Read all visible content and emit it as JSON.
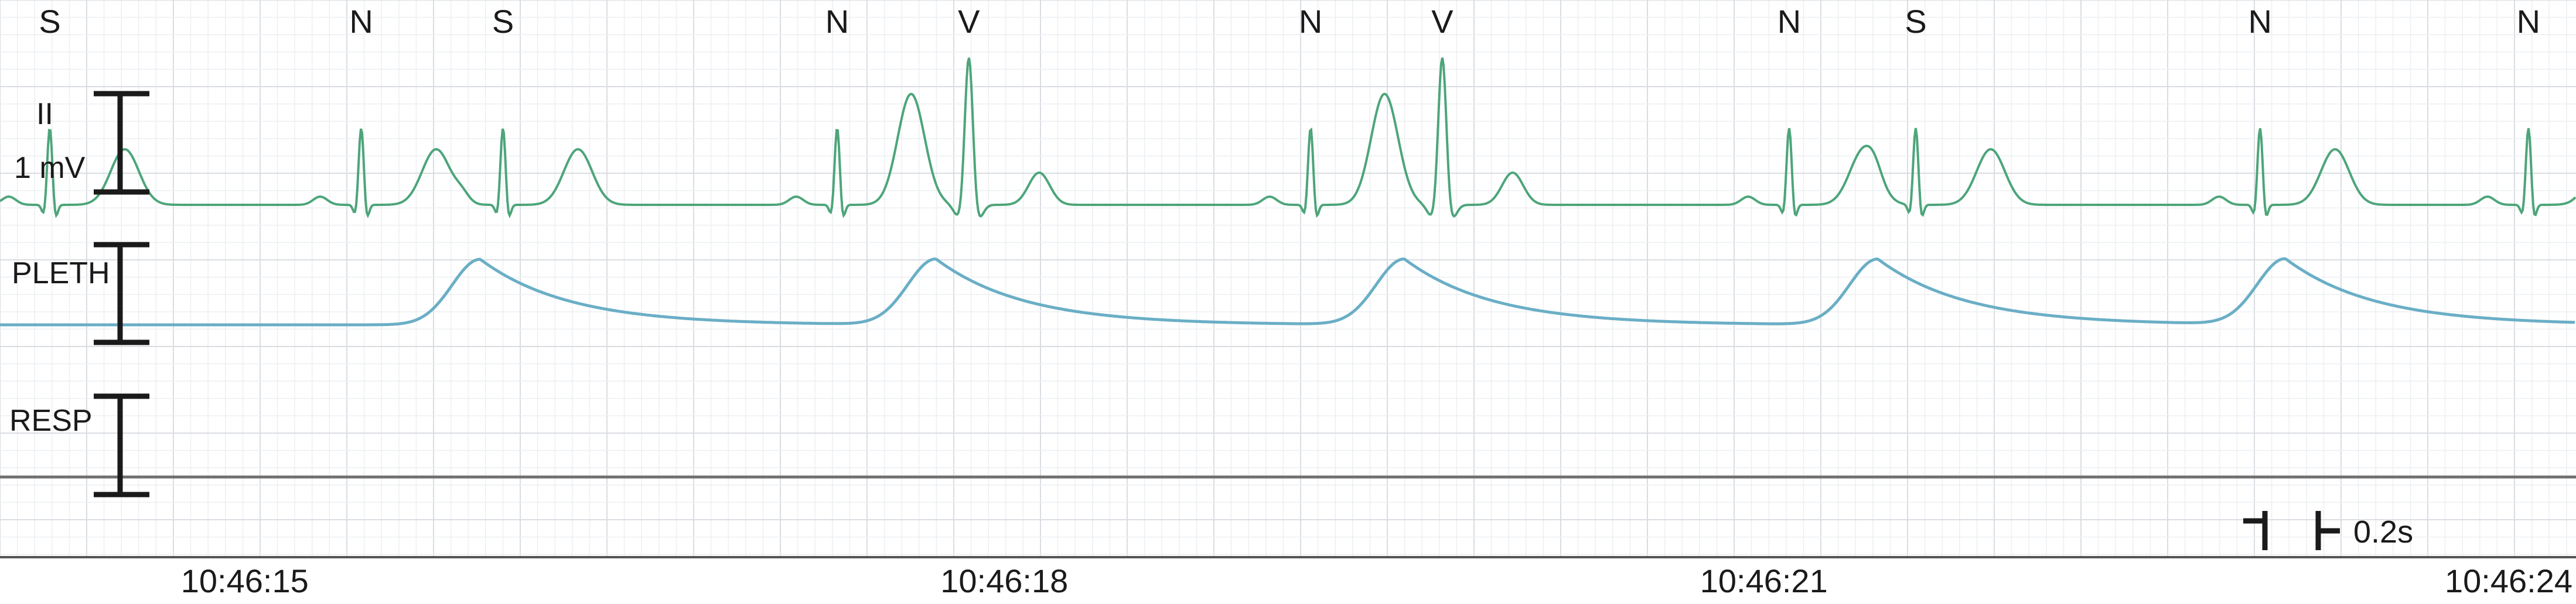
{
  "chart_data": {
    "type": "line",
    "title": "",
    "beat_annotations": [
      {
        "label": "S",
        "time_s": 0.0
      },
      {
        "label": "N",
        "time_s": 1.23
      },
      {
        "label": "S",
        "time_s": 1.79
      },
      {
        "label": "N",
        "time_s": 3.11
      },
      {
        "label": "V",
        "time_s": 3.63
      },
      {
        "label": "N",
        "time_s": 4.98
      },
      {
        "label": "V",
        "time_s": 5.5
      },
      {
        "label": "N",
        "time_s": 6.87
      },
      {
        "label": "S",
        "time_s": 7.37
      },
      {
        "label": "N",
        "time_s": 8.73
      },
      {
        "label": "N",
        "time_s": 9.79
      }
    ],
    "channels": [
      {
        "name": "II",
        "scale_label": "1 mV",
        "color": "#4da57a"
      },
      {
        "name": "PLETH",
        "scale_label": "",
        "color": "#6aaec6"
      },
      {
        "name": "RESP",
        "scale_label": "",
        "color": "#707070"
      }
    ],
    "pleth_peaks_s": [
      1.7,
      3.5,
      5.35,
      7.22,
      8.83
    ],
    "time_axis": {
      "tick_labels": [
        "10:46:15",
        "10:46:18",
        "10:46:21",
        "10:46:24"
      ],
      "tick_times_s": [
        0.77,
        3.77,
        6.77,
        9.77
      ],
      "range_s": [
        0.0,
        9.95
      ]
    },
    "time_scale_label": "0.2s",
    "grid": true
  },
  "colors": {
    "grid_minor": "#eceff2",
    "grid_major": "#d9dde2",
    "ecg": "#4da57a",
    "pleth": "#6aaec6",
    "resp": "#707070",
    "text": "#1a1a1a"
  }
}
